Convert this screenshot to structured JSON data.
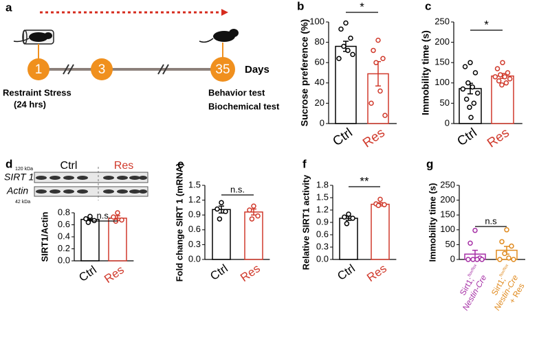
{
  "panel_a": {
    "label": "a",
    "nodes": [
      "1",
      "3",
      "35"
    ],
    "unit": "Days",
    "left_text": [
      "Restraint Stress",
      "(24 hrs)"
    ],
    "right_text": [
      "Behavior test",
      "Biochemical test"
    ]
  },
  "chart_data": [
    {
      "type": "bar",
      "label": "b",
      "ylabel": "Sucrose preference (%)",
      "categories": [
        "Ctrl",
        "Res"
      ],
      "colors": [
        "#000000",
        "#d0392b"
      ],
      "values": [
        76,
        49
      ],
      "errors": [
        5,
        12
      ],
      "points": [
        [
          99,
          93,
          84,
          76,
          72,
          64,
          68
        ],
        [
          82,
          72,
          64,
          60,
          32,
          20,
          8
        ]
      ],
      "ylim": [
        0,
        100
      ],
      "yticks": [
        0,
        20,
        40,
        60,
        80,
        100
      ],
      "significance": "*"
    },
    {
      "type": "bar",
      "label": "c",
      "ylabel": "Immobility time (s)",
      "categories": [
        "Ctrl",
        "Res"
      ],
      "colors": [
        "#000000",
        "#d0392b"
      ],
      "values": [
        86,
        117
      ],
      "errors": [
        13,
        6
      ],
      "points": [
        [
          150,
          140,
          125,
          100,
          90,
          85,
          75,
          60,
          50,
          40,
          15
        ],
        [
          150,
          135,
          125,
          120,
          115,
          115,
          110,
          105,
          100,
          95
        ]
      ],
      "ylim": [
        0,
        250
      ],
      "yticks": [
        0,
        50,
        100,
        150,
        200,
        250
      ],
      "significance": "*"
    },
    {
      "type": "bar",
      "label": "d",
      "ylabel": "SIRT1/Actin",
      "categories": [
        "Ctrl",
        "Res"
      ],
      "colors": [
        "#000000",
        "#d0392b"
      ],
      "values": [
        0.69,
        0.71
      ],
      "errors": [
        0.02,
        0.04
      ],
      "points": [
        [
          0.74,
          0.7,
          0.67,
          0.64
        ],
        [
          0.8,
          0.73,
          0.68,
          0.66
        ]
      ],
      "ylim": [
        0,
        0.8
      ],
      "yticks": [
        {
          "value": 0,
          "label": "0.0"
        },
        0.2,
        0.4,
        0.6,
        0.8
      ],
      "significance": "n.s.",
      "blot": {
        "groups": [
          "Ctrl",
          "Res"
        ],
        "rows": [
          "SIRT 1",
          "Actin"
        ],
        "sizes": [
          "120 kDa",
          "42 kDa"
        ]
      }
    },
    {
      "type": "bar",
      "label": "e",
      "ylabel": "Fold change SIRT 1 (mRNA)",
      "categories": [
        "Ctrl",
        "Res"
      ],
      "colors": [
        "#000000",
        "#d0392b"
      ],
      "values": [
        1.01,
        0.96
      ],
      "errors": [
        0.07,
        0.06
      ],
      "points": [
        [
          1.15,
          1.02,
          0.97,
          0.82
        ],
        [
          1.08,
          1.0,
          0.88,
          0.82
        ]
      ],
      "ylim": [
        0,
        1.5
      ],
      "yticks": [
        {
          "value": 0,
          "label": "0.0"
        },
        0.3,
        0.6,
        0.9,
        1.2,
        1.5
      ],
      "significance": "n.s."
    },
    {
      "type": "bar",
      "label": "f",
      "ylabel": "Relative SIRT1 activity",
      "categories": [
        "Ctrl",
        "Res"
      ],
      "colors": [
        "#000000",
        "#d0392b"
      ],
      "values": [
        1.0,
        1.34
      ],
      "errors": [
        0.05,
        0.04
      ],
      "points": [
        [
          1.1,
          1.03,
          1.0,
          0.87
        ],
        [
          1.46,
          1.35,
          1.33,
          1.31
        ]
      ],
      "ylim": [
        0,
        1.8
      ],
      "yticks": [
        {
          "value": 0,
          "label": "0.0"
        },
        0.3,
        0.6,
        0.9,
        1.2,
        1.5,
        1.8
      ],
      "significance": "**"
    },
    {
      "type": "bar",
      "label": "g",
      "ylabel": "Immobility time (s)",
      "categories": [
        "Sirt1;",
        "Sirt1;"
      ],
      "category_sup": [
        "flox/flox",
        "flox/flox"
      ],
      "category_line2": [
        "Nestin-Cre",
        "Nestin-Cre"
      ],
      "extra_line": "+ Res",
      "colors": [
        "#a52fa5",
        "#e08a1e"
      ],
      "values": [
        18,
        31
      ],
      "errors": [
        13,
        13
      ],
      "points": [
        [
          98,
          55,
          5,
          0,
          0,
          0,
          0
        ],
        [
          100,
          60,
          45,
          20,
          5,
          0,
          0
        ]
      ],
      "ylim": [
        0,
        250
      ],
      "yticks": [
        0,
        50,
        100,
        150,
        200,
        250
      ],
      "significance": "n.s"
    }
  ]
}
